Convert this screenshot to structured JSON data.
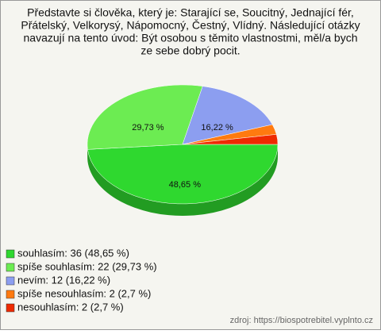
{
  "chart_data": {
    "type": "pie",
    "title_lines": [
      "Představte si člověka, který je: Starající se, Soucitný, Jednající fér,",
      "Přátelský, Velkorysý, Nápomocný, Čestný, Vlídný. Následující otázky",
      "navazují na tento úvod: Být osobou s těmito vlastnostmi, měl/a bych",
      "ze sebe dobrý pocit."
    ],
    "legend_labels": [
      "souhlasím: 36 (48,65 %)",
      "spíše souhlasím: 22 (29,73 %)",
      "nevím: 12 (16,22 %)",
      "spíše nesouhlasím: 2 (2,7 %)",
      "nesouhlasím: 2 (2,7 %)"
    ],
    "values": [
      48.65,
      29.73,
      16.22,
      2.7,
      2.7
    ],
    "value_labels": [
      "48,65 %",
      "29,73 %",
      "16,22 %",
      null,
      null
    ],
    "colors": [
      "#2fd82f",
      "#6cec52",
      "#8c9ef0",
      "#ff7a10",
      "#ee2a00"
    ],
    "source": "zdroj: https://biospotrebitel.vyplnto.cz"
  }
}
